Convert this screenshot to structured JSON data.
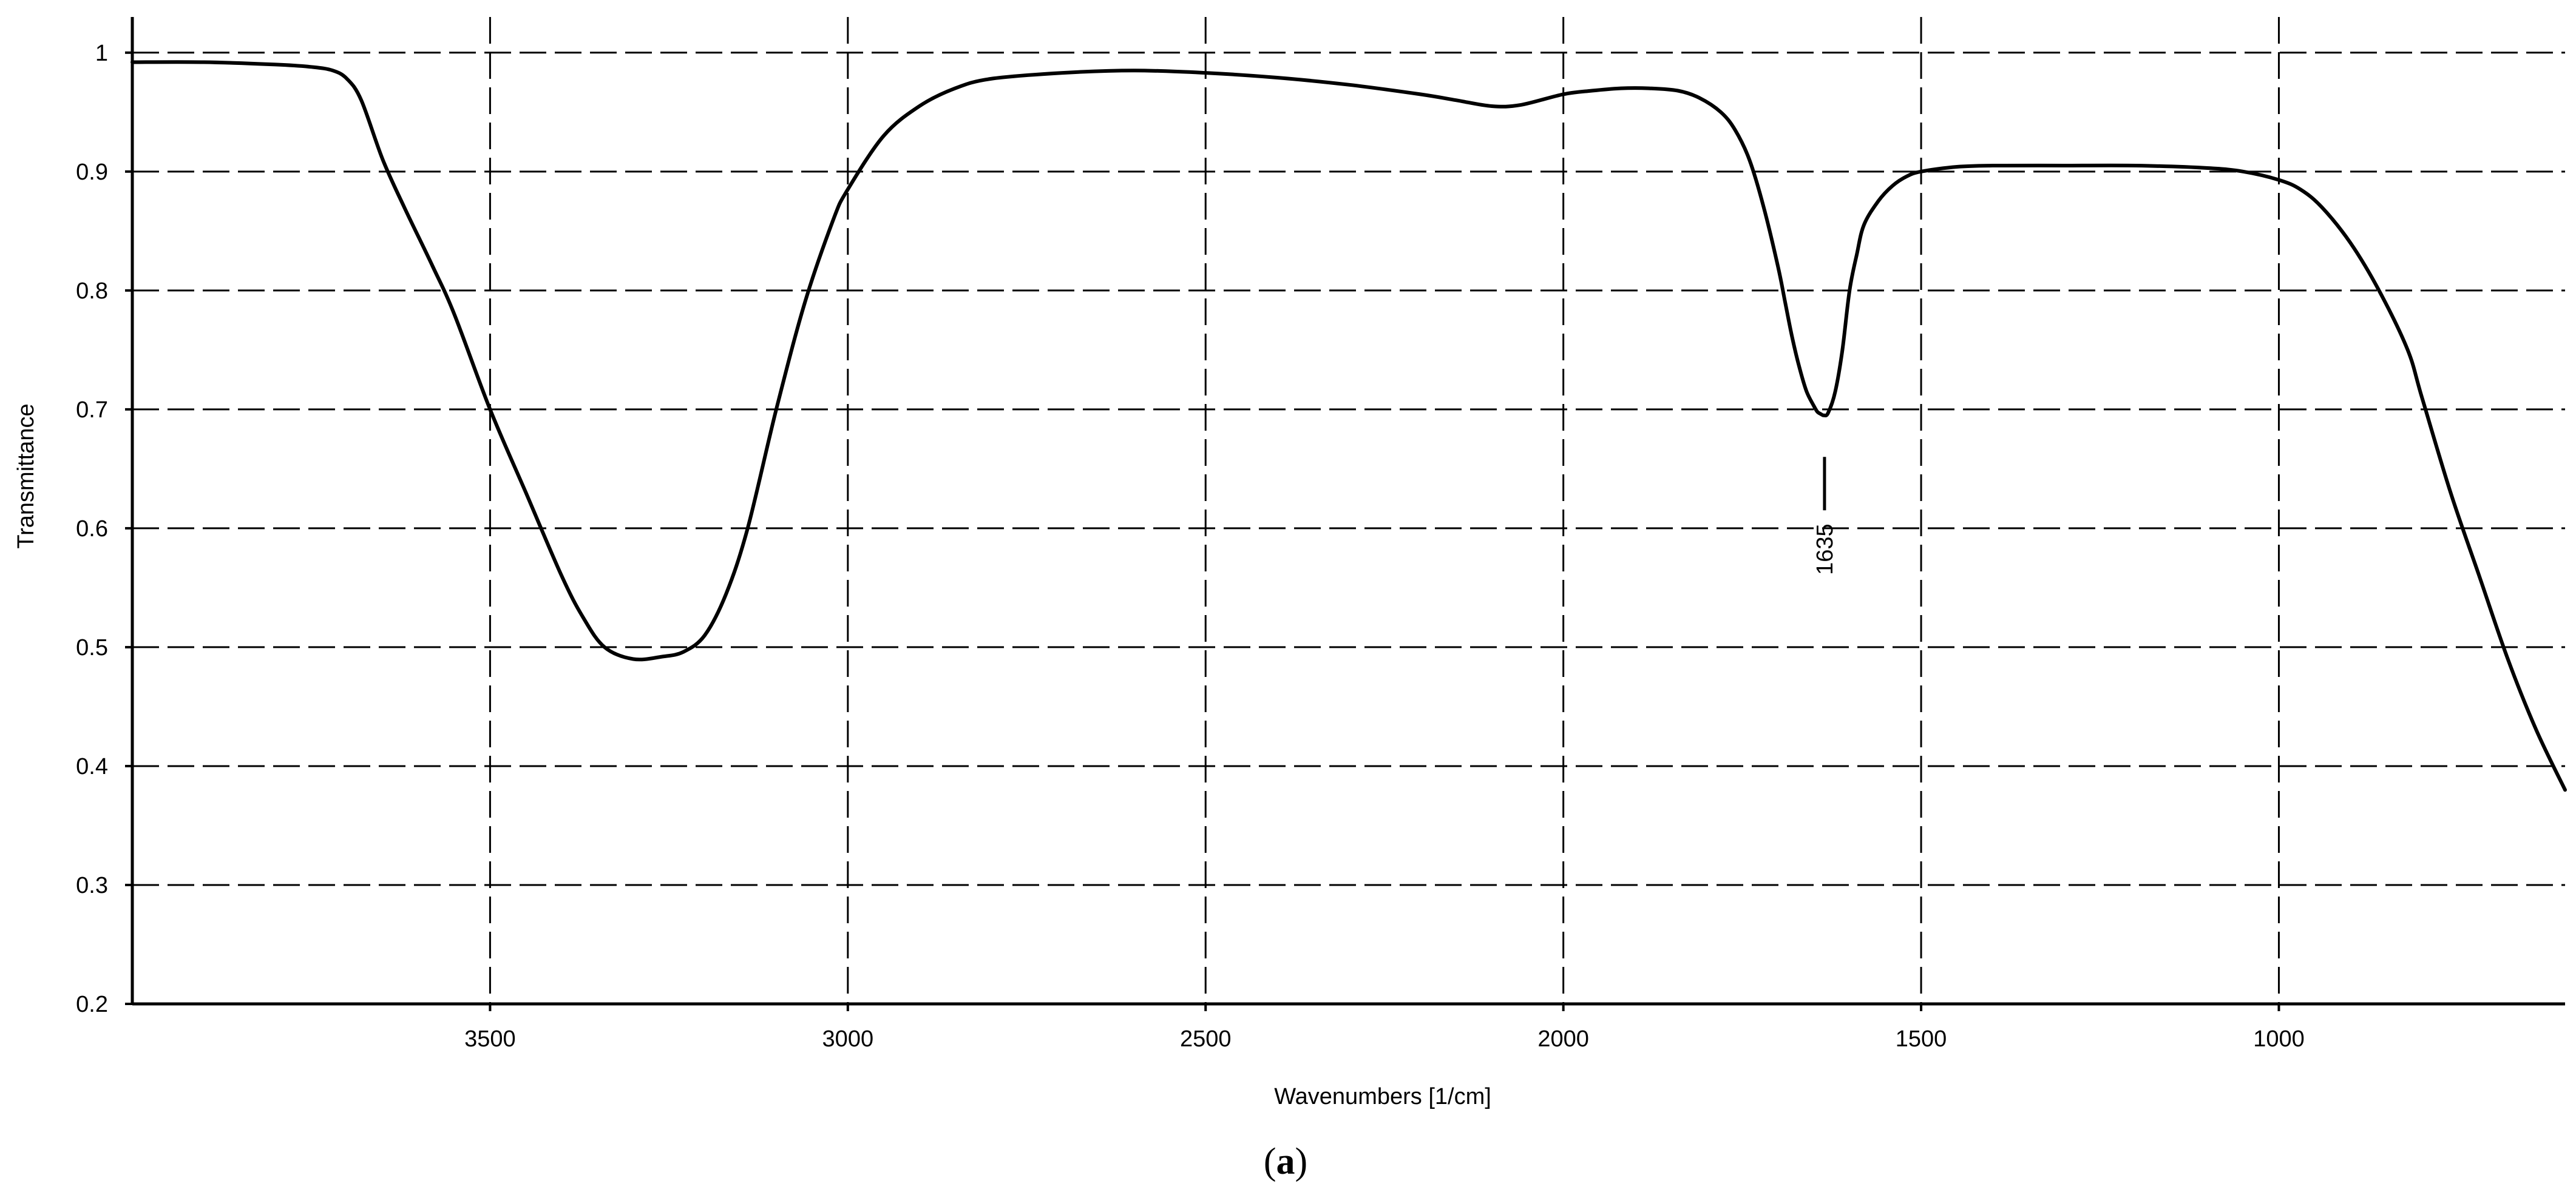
{
  "chart_data": {
    "type": "line",
    "title": "",
    "xlabel": "Wavenumbers [1/cm]",
    "ylabel": "Transmittance",
    "xlim": [
      4000,
      600
    ],
    "ylim": [
      0.2,
      1.03
    ],
    "x_reversed": true,
    "x_ticks": [
      3500,
      3000,
      2500,
      2000,
      1500,
      1000
    ],
    "y_ticks": [
      0.2,
      0.3,
      0.4,
      0.5,
      0.6,
      0.7,
      0.8,
      0.9,
      1
    ],
    "x_tick_labels": [
      "3500",
      "3000",
      "2500",
      "2000",
      "1500",
      "1000"
    ],
    "y_tick_labels": [
      "0.2",
      "0.3",
      "0.4",
      "0.5",
      "0.6",
      "0.7",
      "0.8",
      "0.9",
      "1"
    ],
    "grid": true,
    "series": [
      {
        "x": [
          4000,
          3900,
          3800,
          3750,
          3720,
          3700,
          3680,
          3650,
          3620,
          3580,
          3550,
          3500,
          3450,
          3400,
          3370,
          3340,
          3300,
          3260,
          3230,
          3200,
          3170,
          3140,
          3100,
          3060,
          3020,
          3000,
          2950,
          2900,
          2850,
          2800,
          2700,
          2600,
          2500,
          2400,
          2300,
          2200,
          2150,
          2100,
          2060,
          2000,
          1960,
          1920,
          1880,
          1840,
          1810,
          1780,
          1760,
          1740,
          1720,
          1700,
          1690,
          1680,
          1670,
          1660,
          1650,
          1645,
          1640,
          1636,
          1630,
          1620,
          1610,
          1600,
          1590,
          1580,
          1560,
          1540,
          1520,
          1500,
          1450,
          1400,
          1300,
          1200,
          1100,
          1050,
          1000,
          970,
          940,
          900,
          860,
          820,
          800,
          760,
          720,
          680,
          640,
          600
        ],
        "y": [
          0.992,
          0.992,
          0.99,
          0.988,
          0.985,
          0.978,
          0.96,
          0.91,
          0.87,
          0.82,
          0.78,
          0.7,
          0.63,
          0.56,
          0.525,
          0.5,
          0.49,
          0.492,
          0.496,
          0.51,
          0.545,
          0.6,
          0.7,
          0.79,
          0.86,
          0.885,
          0.93,
          0.955,
          0.97,
          0.978,
          0.983,
          0.985,
          0.983,
          0.979,
          0.973,
          0.965,
          0.96,
          0.955,
          0.956,
          0.965,
          0.968,
          0.97,
          0.97,
          0.968,
          0.962,
          0.95,
          0.935,
          0.91,
          0.87,
          0.82,
          0.79,
          0.76,
          0.735,
          0.715,
          0.703,
          0.698,
          0.696,
          0.695,
          0.697,
          0.715,
          0.75,
          0.8,
          0.83,
          0.855,
          0.875,
          0.888,
          0.896,
          0.9,
          0.904,
          0.905,
          0.905,
          0.905,
          0.903,
          0.9,
          0.893,
          0.885,
          0.87,
          0.84,
          0.8,
          0.75,
          0.71,
          0.63,
          0.56,
          0.49,
          0.43,
          0.38
        ]
      }
    ],
    "annotations": [
      {
        "text": "1635",
        "x": 1635,
        "y": 0.66
      }
    ]
  },
  "caption": {
    "open": "(",
    "letter": "a",
    "close": ")"
  }
}
